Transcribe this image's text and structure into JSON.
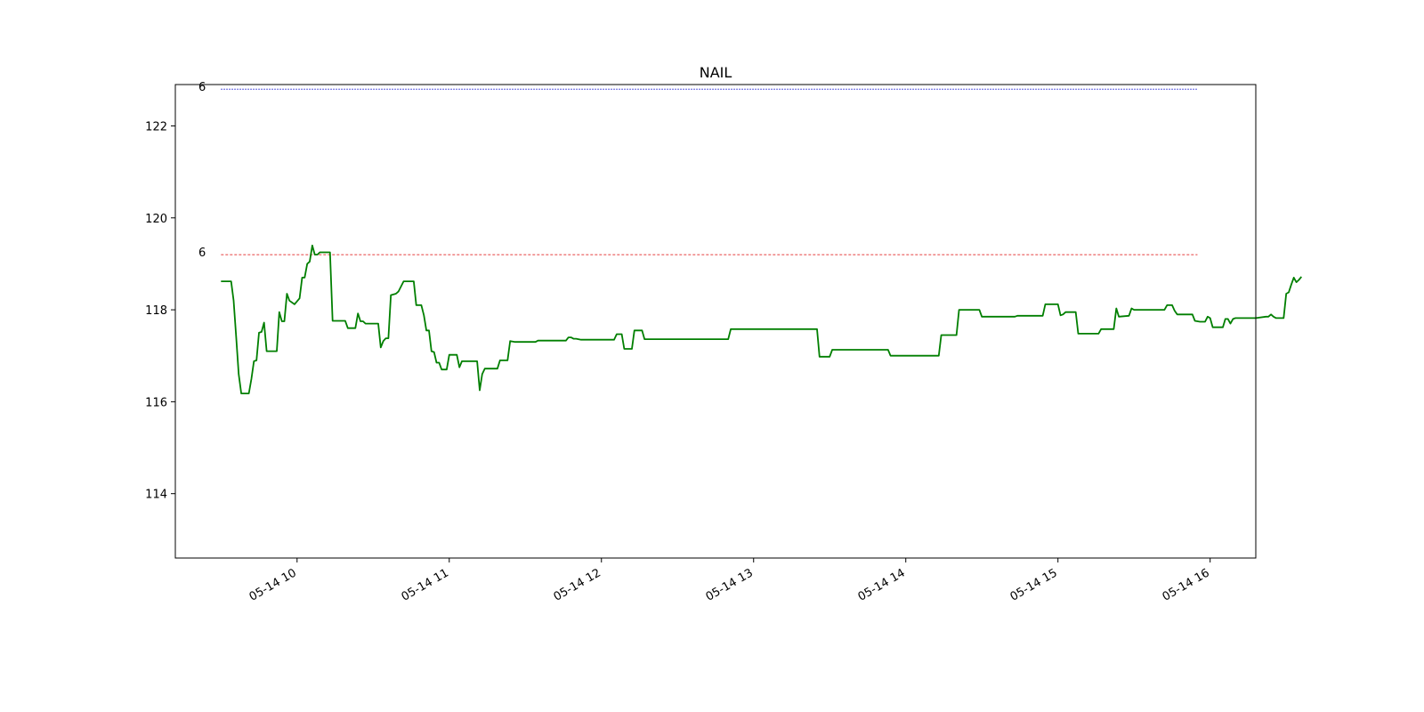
{
  "chart_data": {
    "type": "line",
    "title": "NAIL",
    "xlabel": "",
    "ylabel": "",
    "xlim": [
      "05-14 09:12",
      "05-14 16:18"
    ],
    "ylim": [
      112.6,
      122.9
    ],
    "grid": false,
    "x_ticks": [
      "05-14 10",
      "05-14 11",
      "05-14 12",
      "05-14 13",
      "05-14 14",
      "05-14 15",
      "05-14 16"
    ],
    "y_ticks": [
      114,
      116,
      118,
      120,
      122
    ],
    "reference_lines": [
      {
        "value": 122.8,
        "label": "6",
        "color": "#0000cc",
        "style": "dotted",
        "x_start": "05-14 09:30",
        "x_end": "05-14 15:55"
      },
      {
        "value": 119.2,
        "label": "6",
        "color": "#dd0000",
        "style": "dashed",
        "x_start": "05-14 09:30",
        "x_end": "05-14 15:55"
      }
    ],
    "series": [
      {
        "color": "#007f00",
        "points": [
          [
            "09:30",
            118.62
          ],
          [
            "09:34",
            118.62
          ],
          [
            "09:35",
            118.2
          ],
          [
            "09:36",
            117.4
          ],
          [
            "09:37",
            116.6
          ],
          [
            "09:38",
            116.18
          ],
          [
            "09:41",
            116.18
          ],
          [
            "09:42",
            116.5
          ],
          [
            "09:43",
            116.88
          ],
          [
            "09:44",
            116.9
          ],
          [
            "09:45",
            117.5
          ],
          [
            "09:46",
            117.52
          ],
          [
            "09:47",
            117.72
          ],
          [
            "09:48",
            117.1
          ],
          [
            "09:52",
            117.1
          ],
          [
            "09:53",
            117.95
          ],
          [
            "09:54",
            117.75
          ],
          [
            "09:55",
            117.75
          ],
          [
            "09:56",
            118.35
          ],
          [
            "09:57",
            118.2
          ],
          [
            "09:59",
            118.12
          ],
          [
            "10:01",
            118.25
          ],
          [
            "10:02",
            118.7
          ],
          [
            "10:03",
            118.7
          ],
          [
            "10:04",
            119.0
          ],
          [
            "10:05",
            119.05
          ],
          [
            "10:06",
            119.4
          ],
          [
            "10:07",
            119.2
          ],
          [
            "10:08",
            119.2
          ],
          [
            "10:09",
            119.25
          ],
          [
            "10:13",
            119.25
          ],
          [
            "10:14",
            117.76
          ],
          [
            "10:19",
            117.76
          ],
          [
            "10:20",
            117.6
          ],
          [
            "10:23",
            117.6
          ],
          [
            "10:24",
            117.92
          ],
          [
            "10:25",
            117.75
          ],
          [
            "10:26",
            117.75
          ],
          [
            "10:27",
            117.7
          ],
          [
            "10:32",
            117.7
          ],
          [
            "10:33",
            117.18
          ],
          [
            "10:34",
            117.32
          ],
          [
            "10:35",
            117.38
          ],
          [
            "10:36",
            117.38
          ],
          [
            "10:37",
            118.32
          ],
          [
            "10:39",
            118.35
          ],
          [
            "10:40",
            118.4
          ],
          [
            "10:42",
            118.62
          ],
          [
            "10:46",
            118.62
          ],
          [
            "10:47",
            118.1
          ],
          [
            "10:49",
            118.1
          ],
          [
            "10:50",
            117.88
          ],
          [
            "10:51",
            117.55
          ],
          [
            "10:52",
            117.55
          ],
          [
            "10:53",
            117.1
          ],
          [
            "10:54",
            117.08
          ],
          [
            "10:55",
            116.85
          ],
          [
            "10:56",
            116.85
          ],
          [
            "10:57",
            116.7
          ],
          [
            "10:59",
            116.7
          ],
          [
            "11:00",
            117.02
          ],
          [
            "11:03",
            117.02
          ],
          [
            "11:04",
            116.75
          ],
          [
            "11:05",
            116.88
          ],
          [
            "11:11",
            116.88
          ],
          [
            "11:12",
            116.25
          ],
          [
            "11:13",
            116.6
          ],
          [
            "11:14",
            116.72
          ],
          [
            "11:19",
            116.72
          ],
          [
            "11:20",
            116.9
          ],
          [
            "11:23",
            116.9
          ],
          [
            "11:24",
            117.32
          ],
          [
            "11:26",
            117.3
          ],
          [
            "11:34",
            117.3
          ],
          [
            "11:35",
            117.33
          ],
          [
            "11:46",
            117.33
          ],
          [
            "11:47",
            117.4
          ],
          [
            "11:48",
            117.4
          ],
          [
            "11:49",
            117.37
          ],
          [
            "11:50",
            117.37
          ],
          [
            "11:52",
            117.35
          ],
          [
            "11:59",
            117.35
          ],
          [
            "12:05",
            117.35
          ],
          [
            "12:06",
            117.47
          ],
          [
            "12:08",
            117.47
          ],
          [
            "12:09",
            117.15
          ],
          [
            "12:12",
            117.15
          ],
          [
            "12:13",
            117.55
          ],
          [
            "12:16",
            117.55
          ],
          [
            "12:17",
            117.36
          ],
          [
            "12:50",
            117.36
          ],
          [
            "12:51",
            117.58
          ],
          [
            "13:25",
            117.58
          ],
          [
            "13:26",
            116.98
          ],
          [
            "13:30",
            116.98
          ],
          [
            "13:31",
            117.13
          ],
          [
            "13:53",
            117.13
          ],
          [
            "13:54",
            117.0
          ],
          [
            "14:13",
            117.0
          ],
          [
            "14:14",
            117.45
          ],
          [
            "14:20",
            117.45
          ],
          [
            "14:21",
            118.0
          ],
          [
            "14:29",
            118.0
          ],
          [
            "14:30",
            117.85
          ],
          [
            "14:43",
            117.85
          ],
          [
            "14:44",
            117.87
          ],
          [
            "14:54",
            117.87
          ],
          [
            "14:55",
            118.12
          ],
          [
            "15:00",
            118.12
          ],
          [
            "15:01",
            117.88
          ],
          [
            "15:02",
            117.9
          ],
          [
            "15:03",
            117.95
          ],
          [
            "15:07",
            117.95
          ],
          [
            "15:08",
            117.48
          ],
          [
            "15:16",
            117.48
          ],
          [
            "15:17",
            117.58
          ],
          [
            "15:22",
            117.58
          ],
          [
            "15:23",
            118.03
          ],
          [
            "15:24",
            117.85
          ],
          [
            "15:28",
            117.87
          ],
          [
            "15:29",
            118.03
          ],
          [
            "15:30",
            118.0
          ],
          [
            "15:42",
            118.0
          ],
          [
            "15:43",
            118.1
          ],
          [
            "15:45",
            118.1
          ],
          [
            "15:46",
            117.98
          ],
          [
            "15:47",
            117.9
          ],
          [
            "15:53",
            117.9
          ],
          [
            "15:54",
            117.76
          ],
          [
            "15:56",
            117.74
          ],
          [
            "15:58",
            117.74
          ],
          [
            "15:59",
            117.85
          ],
          [
            "16:00",
            117.82
          ],
          [
            "16:01",
            117.62
          ],
          [
            "16:05",
            117.62
          ],
          [
            "16:06",
            117.8
          ],
          [
            "16:07",
            117.8
          ],
          [
            "16:08",
            117.7
          ],
          [
            "16:09",
            117.8
          ],
          [
            "16:10",
            117.82
          ],
          [
            "16:18",
            117.82
          ],
          [
            "16:22",
            117.85
          ],
          [
            "16:23",
            117.85
          ],
          [
            "16:24",
            117.9
          ],
          [
            "16:25",
            117.85
          ],
          [
            "16:26",
            117.82
          ],
          [
            "16:29",
            117.82
          ],
          [
            "16:30",
            118.35
          ],
          [
            "16:31",
            118.38
          ],
          [
            "16:32",
            118.55
          ],
          [
            "16:33",
            118.7
          ],
          [
            "16:34",
            118.6
          ],
          [
            "16:35",
            118.65
          ],
          [
            "16:36",
            118.72
          ]
        ]
      }
    ]
  }
}
